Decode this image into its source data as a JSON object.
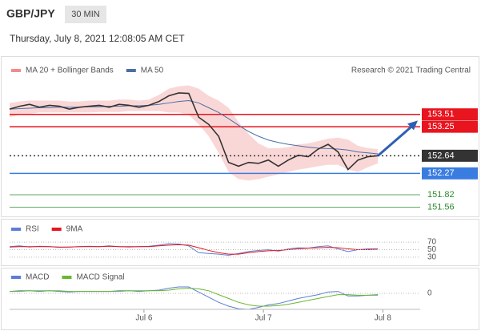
{
  "header": {
    "symbol": "GBP/JPY",
    "interval": "30 MIN",
    "timestamp": "Thursday, July 8, 2021 12:08:05 AM CET"
  },
  "chart_data": [
    {
      "type": "line",
      "annotation": "Research © 2021 Trading Central",
      "x": [
        0,
        2,
        4,
        6,
        8,
        10,
        12,
        14,
        16,
        18,
        20,
        22,
        24,
        26,
        28,
        30,
        32,
        34,
        36,
        38,
        40,
        42,
        44,
        46,
        48,
        50,
        52,
        54,
        56,
        58,
        60,
        62,
        64,
        66,
        68,
        70,
        72,
        74
      ],
      "values": [
        153.62,
        153.68,
        153.72,
        153.66,
        153.7,
        153.68,
        153.62,
        153.66,
        153.68,
        153.7,
        153.66,
        153.72,
        153.7,
        153.66,
        153.7,
        153.78,
        153.9,
        153.96,
        153.95,
        153.45,
        153.3,
        153.05,
        152.5,
        152.42,
        152.5,
        152.48,
        152.55,
        152.42,
        152.55,
        152.65,
        152.62,
        152.78,
        152.88,
        152.72,
        152.35,
        152.55,
        152.62,
        152.64
      ],
      "color": "#333333",
      "series": [
        {
          "name": "MA 20 + Bollinger Bands",
          "color": "#f08c8c",
          "upper": [
            153.75,
            153.78,
            153.8,
            153.8,
            153.8,
            153.8,
            153.78,
            153.78,
            153.8,
            153.8,
            153.8,
            153.82,
            153.82,
            153.8,
            153.82,
            153.92,
            154.05,
            154.1,
            154.12,
            154.05,
            153.9,
            153.8,
            153.65,
            153.35,
            153.1,
            152.9,
            152.8,
            152.8,
            152.82,
            152.88,
            152.9,
            152.95,
            153.0,
            153.02,
            152.98,
            152.85,
            152.8,
            152.78
          ],
          "lower": [
            153.45,
            153.5,
            153.52,
            153.55,
            153.55,
            153.55,
            153.55,
            153.55,
            153.55,
            153.56,
            153.56,
            153.56,
            153.58,
            153.58,
            153.58,
            153.58,
            153.55,
            153.55,
            153.5,
            153.3,
            153.05,
            152.7,
            152.3,
            152.15,
            152.12,
            152.15,
            152.2,
            152.25,
            152.3,
            152.35,
            152.38,
            152.42,
            152.45,
            152.45,
            152.35,
            152.3,
            152.4,
            152.48
          ]
        },
        {
          "name": "MA 50",
          "color": "#4a6fa5",
          "values": [
            153.62,
            153.63,
            153.64,
            153.65,
            153.65,
            153.66,
            153.66,
            153.66,
            153.67,
            153.67,
            153.68,
            153.68,
            153.69,
            153.69,
            153.7,
            153.72,
            153.75,
            153.78,
            153.8,
            153.75,
            153.65,
            153.55,
            153.42,
            153.28,
            153.15,
            153.05,
            152.97,
            152.92,
            152.88,
            152.85,
            152.82,
            152.8,
            152.79,
            152.78,
            152.76,
            152.72,
            152.7,
            152.68
          ]
        }
      ],
      "levels": [
        {
          "value": 153.51,
          "color": "#e8141e",
          "style": "solid",
          "boxed": true
        },
        {
          "value": 153.25,
          "color": "#e8141e",
          "style": "solid",
          "boxed": true
        },
        {
          "value": 152.64,
          "color": "#333333",
          "style": "dotted",
          "boxed": true
        },
        {
          "value": 152.27,
          "color": "#3a7de0",
          "style": "solid",
          "boxed": true
        },
        {
          "value": 151.82,
          "color": "#2e8b2e",
          "style": "solid",
          "boxed": false
        },
        {
          "value": 151.56,
          "color": "#2e8b2e",
          "style": "solid",
          "boxed": false
        }
      ],
      "xlim": [
        0,
        82.5
      ],
      "ylim": [
        151.45,
        154.65
      ]
    },
    {
      "type": "line",
      "series": [
        {
          "name": "RSI",
          "color": "#5b7fd6",
          "values": [
            58,
            60,
            57,
            59,
            58,
            56,
            57,
            58,
            59,
            58,
            60,
            58,
            57,
            58,
            59,
            62,
            66,
            65,
            60,
            42,
            40,
            38,
            35,
            40,
            45,
            48,
            50,
            46,
            52,
            55,
            54,
            58,
            60,
            52,
            45,
            50,
            52,
            52
          ]
        },
        {
          "name": "9MA",
          "color": "#e8141e",
          "values": [
            57,
            58,
            58,
            58,
            58,
            57,
            57,
            58,
            58,
            58,
            59,
            58,
            58,
            58,
            58,
            60,
            62,
            63,
            62,
            55,
            48,
            42,
            38,
            38,
            42,
            45,
            47,
            48,
            50,
            52,
            54,
            55,
            56,
            55,
            52,
            50,
            50,
            51
          ]
        }
      ],
      "ylim": [
        0,
        100
      ],
      "yticks": [
        70,
        50,
        30
      ]
    },
    {
      "type": "line",
      "series": [
        {
          "name": "MACD",
          "color": "#5b7fd6",
          "values": [
            0.03,
            0.04,
            0.04,
            0.03,
            0.04,
            0.03,
            0.02,
            0.03,
            0.03,
            0.03,
            0.03,
            0.04,
            0.04,
            0.03,
            0.04,
            0.05,
            0.08,
            0.1,
            0.1,
            0.02,
            -0.06,
            -0.14,
            -0.2,
            -0.24,
            -0.25,
            -0.22,
            -0.18,
            -0.16,
            -0.12,
            -0.08,
            -0.05,
            -0.02,
            0.02,
            0.03,
            -0.04,
            -0.04,
            -0.03,
            -0.02
          ]
        },
        {
          "name": "MACD Signal",
          "color": "#6ab82e",
          "values": [
            0.03,
            0.03,
            0.04,
            0.04,
            0.04,
            0.04,
            0.03,
            0.03,
            0.03,
            0.03,
            0.03,
            0.03,
            0.04,
            0.04,
            0.04,
            0.04,
            0.05,
            0.07,
            0.08,
            0.07,
            0.04,
            -0.02,
            -0.08,
            -0.14,
            -0.18,
            -0.2,
            -0.2,
            -0.19,
            -0.17,
            -0.14,
            -0.11,
            -0.08,
            -0.05,
            -0.02,
            -0.02,
            -0.03,
            -0.03,
            -0.03
          ]
        }
      ],
      "ylim": [
        -0.4,
        0.3
      ],
      "yticks": [
        0
      ],
      "xticks": [
        {
          "value": 27,
          "label": "Jul 6"
        },
        {
          "value": 51,
          "label": "Jul 7"
        },
        {
          "value": 75,
          "label": "Jul 8"
        }
      ]
    }
  ]
}
